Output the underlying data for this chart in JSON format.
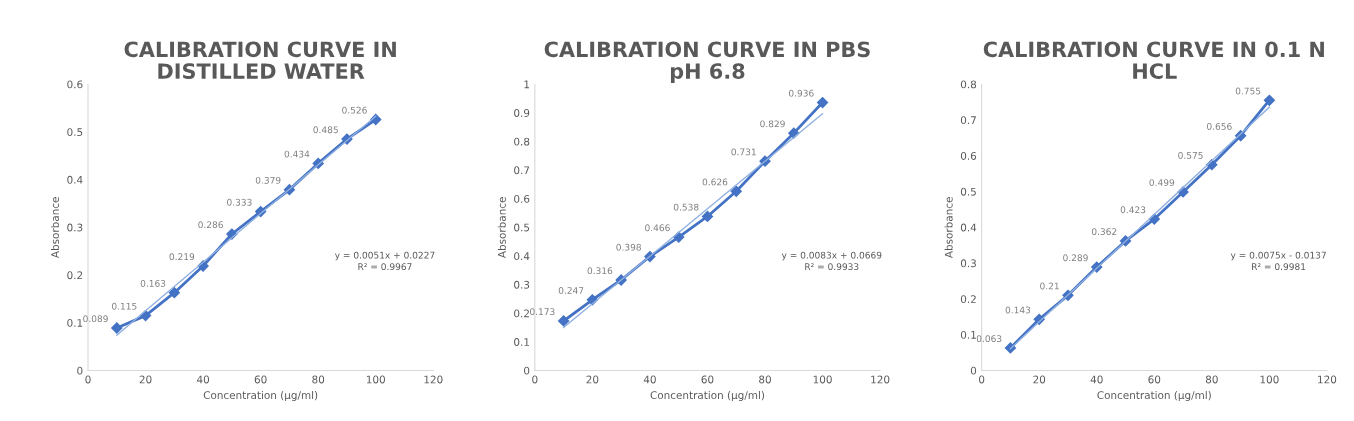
{
  "chart_data": [
    {
      "type": "line",
      "title": "CALIBRATION CURVE IN\nDISTILLED WATER",
      "xlabel": "Concentration (µg/ml)",
      "ylabel": "Absorbance",
      "x": [
        10,
        20,
        30,
        40,
        50,
        60,
        70,
        80,
        90,
        100
      ],
      "xlim": [
        0,
        120
      ],
      "xticks": [
        0,
        20,
        40,
        60,
        80,
        100,
        120
      ],
      "ylim": [
        0,
        0.6
      ],
      "yticks": [
        0,
        0.1,
        0.2,
        0.3,
        0.4,
        0.5,
        0.6
      ],
      "grid": false,
      "series": [
        {
          "color": "#4472c4",
          "marker": "diamond",
          "values": [
            0.089,
            0.115,
            0.163,
            0.219,
            0.286,
            0.333,
            0.379,
            0.434,
            0.485,
            0.526
          ],
          "value_labels": [
            "0.089",
            "0.115",
            "0.163",
            "0.219",
            "0.286",
            "0.333",
            "0.379",
            "0.434",
            "0.485",
            "0.526"
          ]
        },
        {
          "type": "line",
          "color": "#8fb0e0",
          "values": [
            0.074,
            0.125,
            0.176,
            0.227,
            0.278,
            0.329,
            0.38,
            0.431,
            0.482,
            0.533
          ]
        }
      ],
      "annotations": [
        "y = 0.0051x + 0.0227\nR² = 0.9967"
      ]
    },
    {
      "type": "line",
      "title": "CALIBRATION CURVE IN PBS\npH 6.8",
      "xlabel": "Concentration (µg/ml)",
      "ylabel": "Absorbance",
      "x": [
        10,
        20,
        30,
        40,
        50,
        60,
        70,
        80,
        90,
        100
      ],
      "xlim": [
        0,
        120
      ],
      "xticks": [
        0,
        20,
        40,
        60,
        80,
        100,
        120
      ],
      "ylim": [
        0,
        1
      ],
      "yticks": [
        0,
        0.1,
        0.2,
        0.3,
        0.4,
        0.5,
        0.6,
        0.7,
        0.8,
        0.9,
        1
      ],
      "grid": false,
      "series": [
        {
          "color": "#4472c4",
          "marker": "diamond",
          "values": [
            0.173,
            0.247,
            0.316,
            0.398,
            0.466,
            0.538,
            0.626,
            0.731,
            0.829,
            0.936
          ],
          "value_labels": [
            "0.173",
            "0.247",
            "0.316",
            "0.398",
            "0.466",
            "0.538",
            "0.626",
            "0.731",
            "0.829",
            "0.936"
          ]
        },
        {
          "type": "line",
          "color": "#8fb0e0",
          "values": [
            0.15,
            0.233,
            0.316,
            0.399,
            0.482,
            0.565,
            0.648,
            0.731,
            0.814,
            0.897
          ]
        }
      ],
      "annotations": [
        "y = 0.0083x + 0.0669\nR² = 0.9933"
      ]
    },
    {
      "type": "line",
      "title": "CALIBRATION CURVE IN 0.1 N\nHCL",
      "xlabel": "Concentration (µg/ml)",
      "ylabel": "Absorbance",
      "x": [
        10,
        20,
        30,
        40,
        50,
        60,
        70,
        80,
        90,
        100
      ],
      "xlim": [
        0,
        120
      ],
      "xticks": [
        0,
        20,
        40,
        60,
        80,
        100,
        120
      ],
      "ylim": [
        0,
        0.8
      ],
      "yticks": [
        0,
        0.1,
        0.2,
        0.3,
        0.4,
        0.5,
        0.6,
        0.7,
        0.8
      ],
      "grid": false,
      "series": [
        {
          "color": "#4472c4",
          "marker": "diamond",
          "values": [
            0.063,
            0.143,
            0.21,
            0.289,
            0.362,
            0.423,
            0.499,
            0.575,
            0.656,
            0.755
          ],
          "value_labels": [
            "0.063",
            "0.143",
            "0.21",
            "0.289",
            "0.362",
            "0.423",
            "0.499",
            "0.575",
            "0.656",
            "0.755"
          ]
        },
        {
          "type": "line",
          "color": "#8fb0e0",
          "values": [
            0.061,
            0.136,
            0.211,
            0.286,
            0.361,
            0.436,
            0.511,
            0.586,
            0.661,
            0.736
          ]
        }
      ],
      "annotations": [
        "y = 0.0075x - 0.0137\nR² = 0.9981"
      ]
    }
  ]
}
